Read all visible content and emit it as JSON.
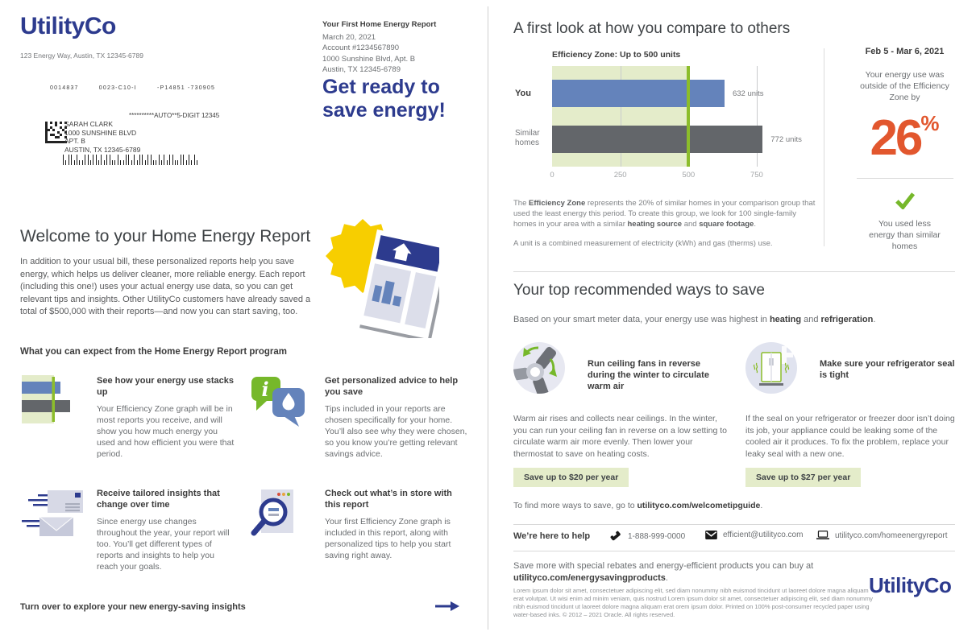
{
  "brand": {
    "name": "UtilityCo",
    "navy": "#2d3b8e",
    "green": "#76b82a",
    "orange": "#e2572e",
    "light_green": "#e4ecca"
  },
  "left_page": {
    "sender_address": "123 Energy Way, Austin, TX 12345-6789",
    "mail_codes": "0014837        0023-C10-I        -P14851 -730905",
    "mail_route": "**********AUTO**5-DIGIT 12345",
    "recipient_lines": [
      "SARAH CLARK",
      "1000 SUNSHINE BLVD",
      "APT. B",
      "AUSTIN, TX 12345-6789"
    ],
    "barcode_pattern": "tsttstssttsttststtsstssttststtsttsstststtssttststs",
    "report_meta": {
      "title": "Your First Home Energy Report",
      "date": "March 20, 2021",
      "account": "Account #1234567890",
      "address_line1": "1000 Sunshine Blvd, Apt. B",
      "address_line2": "Austin, TX 12345-6789"
    },
    "headline": "Get ready to save energy!",
    "welcome_title": "Welcome to your Home Energy Report",
    "welcome_body": "In addition to your usual bill, these personalized reports help you save energy, which helps us deliver cleaner, more reliable energy. Each report (including this one!) uses your actual energy use data, so you can get relevant tips and insights. Other UtilityCo customers have already saved a total of $500,000 with their reports—and now you can start saving, too.",
    "expect_heading": "What you can expect from the Home Energy Report program",
    "features": [
      {
        "icon": "efficiency-graph-icon",
        "title": "See how your energy use stacks up",
        "body": "Your Efficiency Zone graph will be in most reports you receive, and will show you how much energy you used and how efficient you were that period."
      },
      {
        "icon": "chat-bubbles-icon",
        "title": "Get personalized advice to help you save",
        "body": "Tips included in your reports are chosen specifically for your home. You’ll also see why they were chosen, so you know you’re getting relevant savings advice."
      },
      {
        "icon": "envelopes-icon",
        "title": "Receive tailored insights that change over time",
        "body": "Since energy use changes throughout the year, your report will too. You’ll get different types of reports and insights to help you reach your goals."
      },
      {
        "icon": "magnifier-document-icon",
        "title": "Check out what’s in store with this report",
        "body": "Your first Efficiency Zone graph is included in this report, along with personalized tips to help you start saving right away."
      }
    ],
    "turn_over": "Turn over to explore your new energy-saving insights"
  },
  "right_page": {
    "compare_title": "A first look at how you compare to others",
    "sidebar": {
      "date_range": "Feb 5 - Mar 6, 2021",
      "context": "Your energy use was outside of the Efficiency Zone by",
      "percent_value": "26",
      "percent_sign": "%",
      "result_note": "You used less energy than similar homes"
    },
    "zone_note": {
      "p1_pre": "The ",
      "p1_bold1": "Efficiency Zone",
      "p1_mid": " represents the 20% of similar homes in your comparison group that used the least energy this period. To create this group, we look for 100 single-family homes in your area with a similar ",
      "p1_bold2": "heating source",
      "p1_and": " and ",
      "p1_bold3": "square footage",
      "p1_end": ".",
      "p2": "A unit is a combined measurement of electricity (kWh) and gas (therms) use."
    },
    "ways_title": "Your top recommended ways to save",
    "ways_intro": {
      "pre": "Based on your smart meter data, your energy use was highest in ",
      "bold1": "heating",
      "and": " and ",
      "bold2": "refrigeration",
      "end": "."
    },
    "tips": [
      {
        "icon": "ceiling-fan-icon",
        "title": "Run ceiling fans in reverse during the winter to circulate warm air",
        "body": "Warm air rises and collects near ceilings. In the winter, you can run your ceiling fan in reverse on a low setting to circulate warm air more evenly. Then lower your thermostat to save on heating costs.",
        "badge": "Save up to $20 per year"
      },
      {
        "icon": "refrigerator-icon",
        "title": "Make sure your refrigerator seal is tight",
        "body": "If the seal on your refrigerator or freezer door isn’t doing its job, your appliance could be leaking some of the cooled air it produces. To fix the problem, replace your leaky seal with a new one.",
        "badge": "Save up to $27 per year"
      }
    ],
    "more_ways": {
      "pre": "To find more ways to save, go to ",
      "link": "utilityco.com/welcometipguide",
      "end": "."
    },
    "help": {
      "label": "We’re here to help",
      "phone": "1-888-999-0000",
      "email": "efficient@utilityco.com",
      "web": "utilityco.com/homeenergyreport"
    },
    "rebates": {
      "pre": "Save more with special rebates and energy-efficient products you can buy at ",
      "link": "utilityco.com/energysavingproducts",
      "end": "."
    },
    "fine_print": "Lorem ipsum dolor sit amet, consectetuer adipiscing elit, sed diam nonummy nibh euismod tincidunt ut laoreet dolore magna aliquam erat volutpat. Ut wisi enim ad minim veniam, quis nostrud Lorem ipsum dolor sit amet, consectetuer adipiscing elit, sed diam nonummy nibh euismod tincidunt ut laoreet dolore magna aliquam erat orem ipsum dolor. Printed on 100% post-consumer recycled paper using water-based inks. © 2012 – 2021 Oracle. All rights reserved."
  },
  "chart_data": {
    "type": "bar",
    "orientation": "horizontal",
    "title": "Efficiency Zone: Up to 500 units",
    "categories": [
      "You",
      "Similar homes"
    ],
    "values": [
      632,
      772
    ],
    "value_labels": [
      "632 units",
      "772 units"
    ],
    "bar_colors": [
      "#6483bb",
      "#63666a"
    ],
    "efficiency_zone_max": 500,
    "zone_fill": "#e4ecca",
    "zone_line_color": "#8cbd2b",
    "xticks": [
      0,
      250,
      500,
      750
    ],
    "xlim": [
      0,
      960
    ],
    "grid": true,
    "unit": "units",
    "period": "Feb 5 - Mar 6, 2021",
    "outside_zone_percent": 26
  }
}
